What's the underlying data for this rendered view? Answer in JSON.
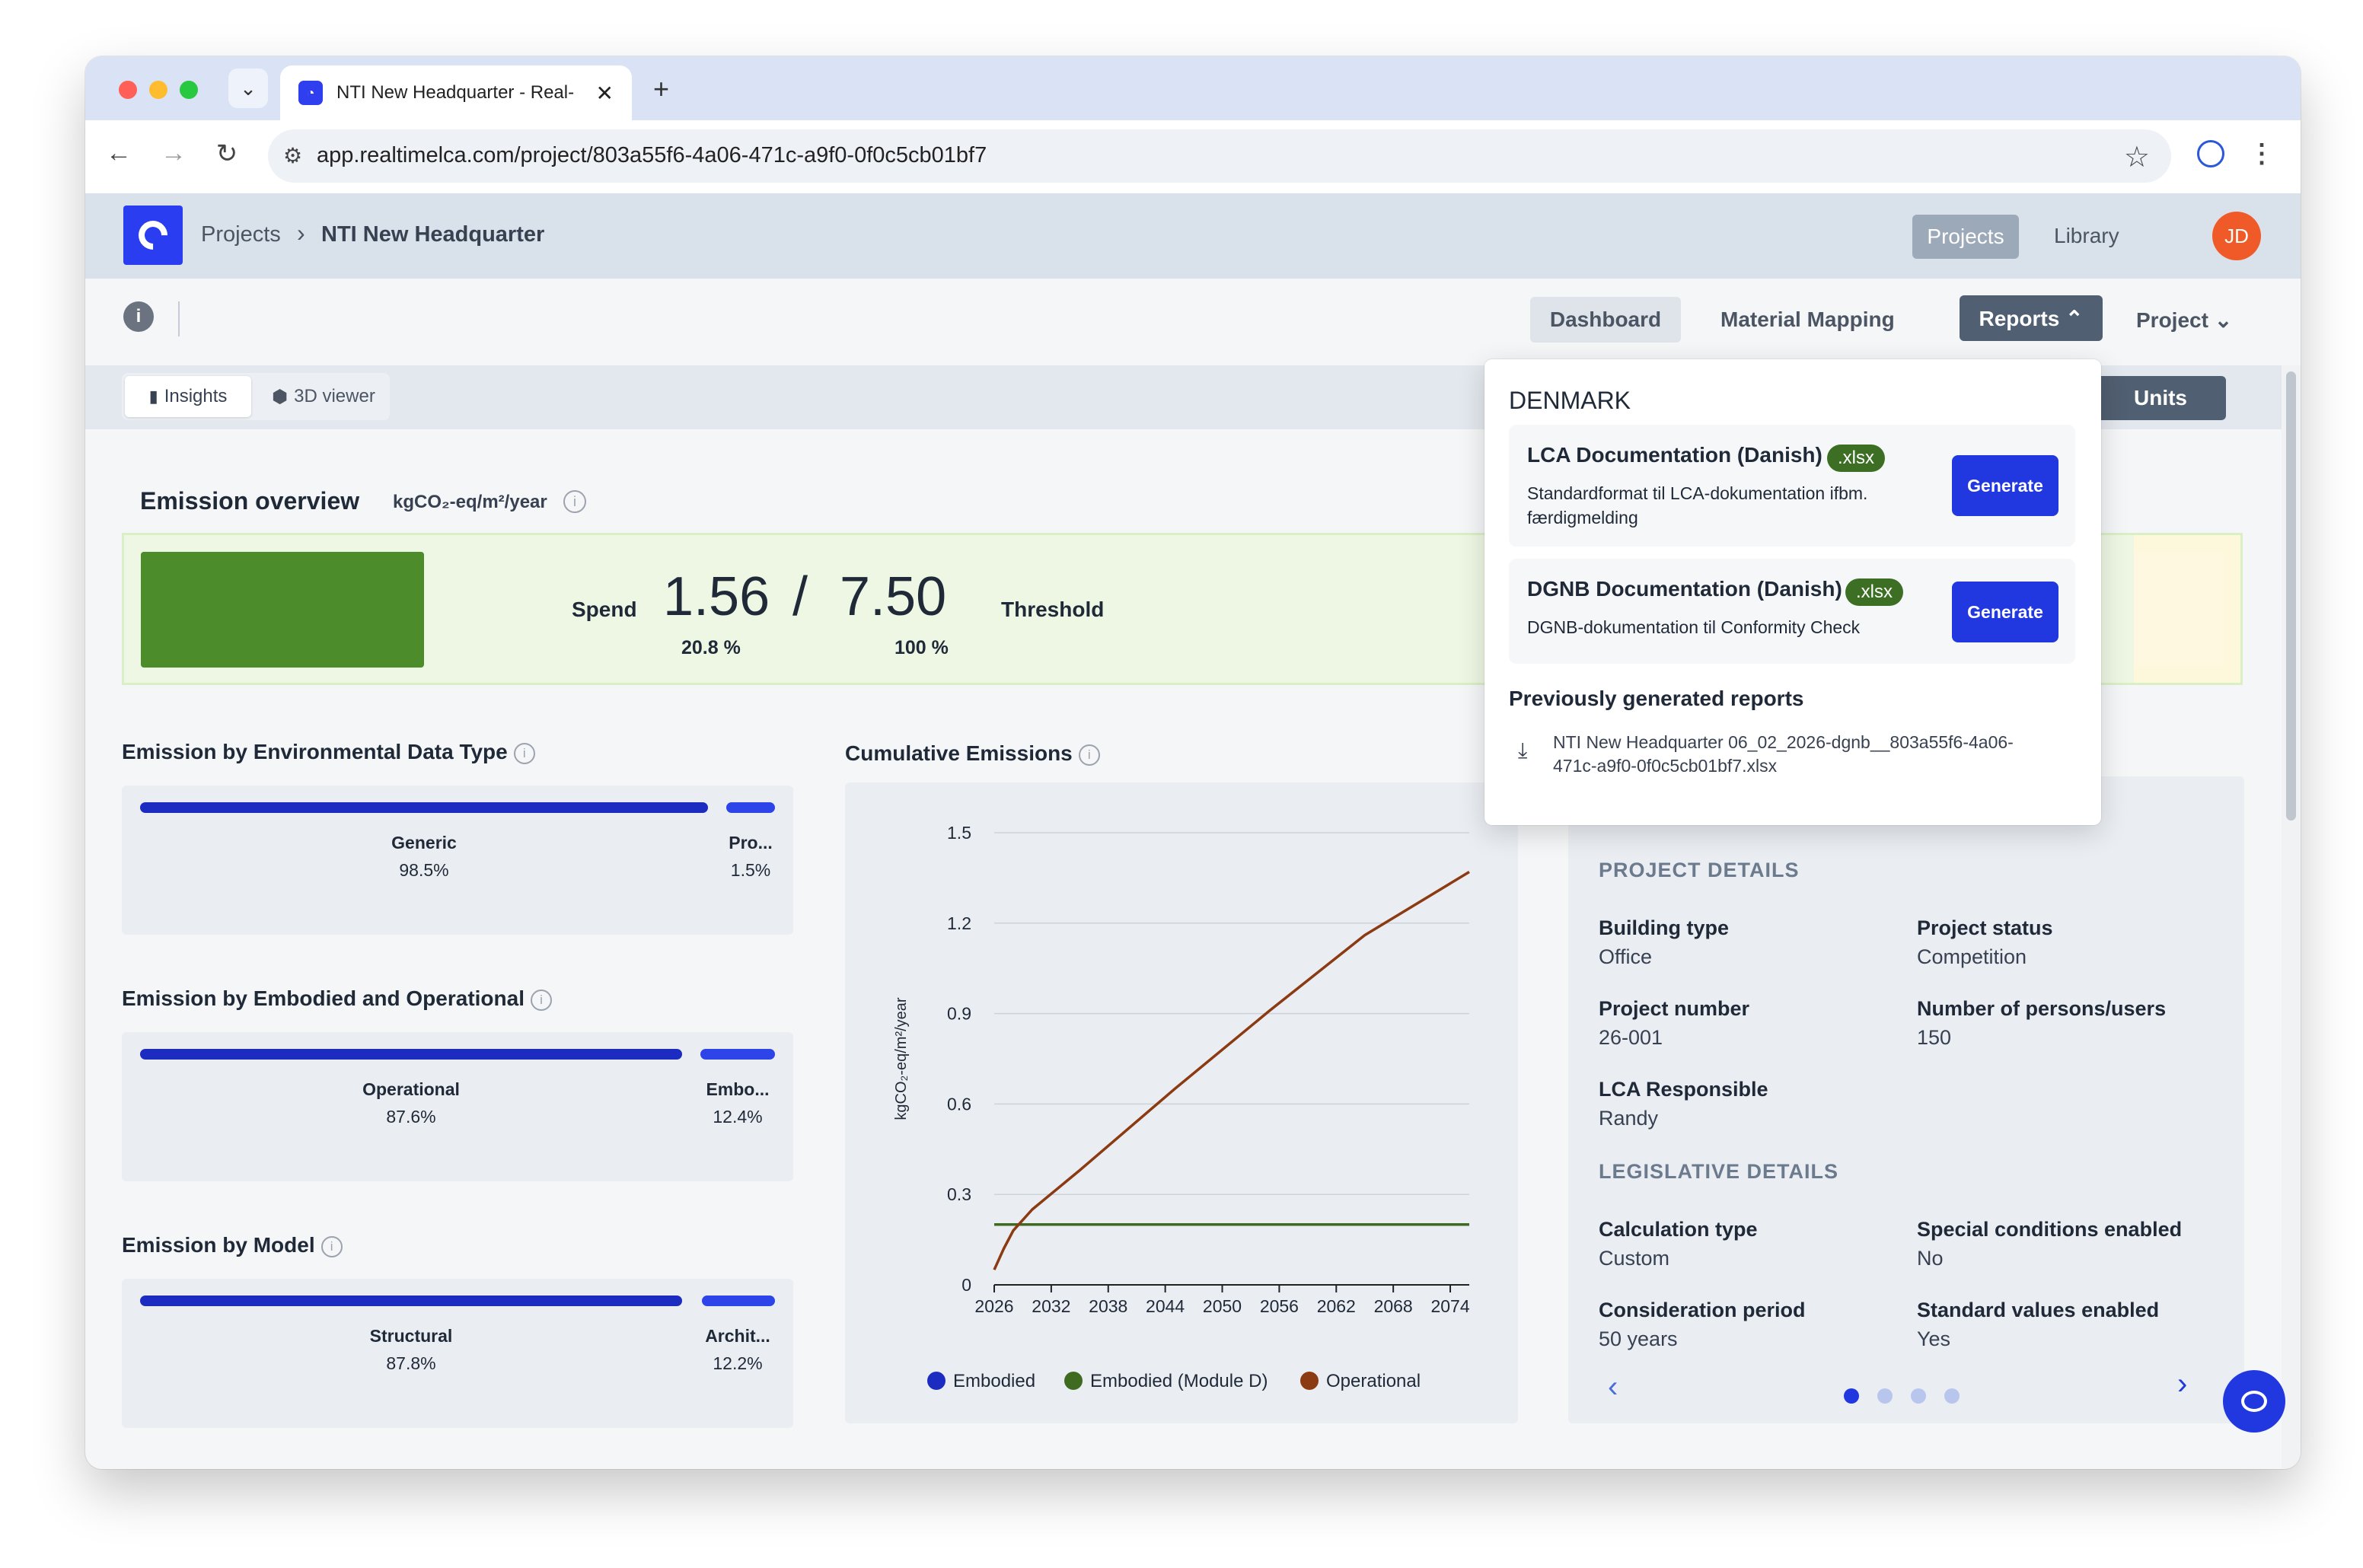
{
  "browser": {
    "tab_title": "NTI New Headquarter - Real-",
    "tab_close": "✕",
    "new_tab": "+",
    "url": "app.realtimelca.com/project/803a55f6-4a06-471c-a9f0-0f0c5cb01bf7"
  },
  "header": {
    "breadcrumb": [
      "Projects",
      "NTI New Headquarter"
    ],
    "projects_label": "Projects",
    "library_label": "Library",
    "avatar_initials": "JD"
  },
  "nav": {
    "dashboard": "Dashboard",
    "material_mapping": "Material Mapping",
    "reports": "Reports ⌃",
    "project": "Project ⌄"
  },
  "view": {
    "insights": "Insights",
    "viewer_3d": "3D viewer",
    "units": "Units"
  },
  "overview": {
    "title": "Emission overview",
    "unit": "kgCO₂-eq/m²/year",
    "spend_label": "Spend",
    "spend_value": "1.56",
    "slash": "/",
    "threshold_value": "7.50",
    "threshold_label": "Threshold",
    "spend_pct": "20.8 %",
    "threshold_pct": "100 %",
    "spend_fraction": 0.208
  },
  "env_type": {
    "title": "Emission by Environmental Data Type",
    "items": [
      {
        "label": "Generic",
        "pct": "98.5%"
      },
      {
        "label": "Pro...",
        "pct": "1.5%"
      }
    ]
  },
  "embodied_operational": {
    "title": "Emission by Embodied and Operational",
    "items": [
      {
        "label": "Operational",
        "pct": "87.6%"
      },
      {
        "label": "Embo...",
        "pct": "12.4%"
      }
    ]
  },
  "by_model": {
    "title": "Emission by Model",
    "items": [
      {
        "label": "Structural",
        "pct": "87.8%"
      },
      {
        "label": "Archit...",
        "pct": "12.2%"
      }
    ]
  },
  "chart_data": {
    "type": "line",
    "title": "Cumulative Emissions",
    "ylabel": "kgCO₂-eq/m²/year",
    "xlabel": "",
    "x_ticks": [
      "2026",
      "2032",
      "2038",
      "2044",
      "2050",
      "2056",
      "2062",
      "2068",
      "2074"
    ],
    "y_ticks": [
      "0",
      "0.3",
      "0.6",
      "0.9",
      "1.2",
      "1.5"
    ],
    "xlim": [
      2026,
      2076
    ],
    "ylim": [
      0,
      1.5
    ],
    "series": [
      {
        "name": "Embodied",
        "color": "#1c2bc0",
        "x": [],
        "y": []
      },
      {
        "name": "Embodied (Module D)",
        "color": "#3f6b21",
        "x": [
          2026,
          2076
        ],
        "y": [
          0.2,
          0.2
        ]
      },
      {
        "name": "Operational",
        "color": "#8b3a12",
        "x": [
          2026,
          2027,
          2028,
          2030,
          2035,
          2045,
          2055,
          2065,
          2076
        ],
        "y": [
          0.05,
          0.12,
          0.18,
          0.25,
          0.38,
          0.65,
          0.91,
          1.16,
          1.37
        ]
      }
    ],
    "legend_position": "bottom",
    "grid": true
  },
  "project_details": {
    "heading": "PROJECT DETAILS",
    "fields": [
      {
        "label": "Building type",
        "value": "Office"
      },
      {
        "label": "Project status",
        "value": "Competition"
      },
      {
        "label": "Project number",
        "value": "26-001"
      },
      {
        "label": "Number of persons/users",
        "value": "150"
      },
      {
        "label": "LCA Responsible",
        "value": "Randy"
      }
    ],
    "legislative_heading": "LEGISLATIVE DETAILS",
    "legislative_fields": [
      {
        "label": "Calculation type",
        "value": "Custom"
      },
      {
        "label": "Special conditions enabled",
        "value": "No"
      },
      {
        "label": "Consideration period",
        "value": "50 years"
      },
      {
        "label": "Standard values enabled",
        "value": "Yes"
      }
    ],
    "prev": "‹",
    "next": "›"
  },
  "reports_dropdown": {
    "country": "DENMARK",
    "items": [
      {
        "title": "LCA Documentation (Danish)",
        "badge": ".xlsx",
        "desc": "Standardformat til LCA-dokumentation ifbm. færdigmelding",
        "button": "Generate"
      },
      {
        "title": "DGNB Documentation (Danish)",
        "badge": ".xlsx",
        "desc": "DGNB-dokumentation til Conformity Check",
        "button": "Generate"
      }
    ],
    "previous_title": "Previously generated reports",
    "previous_file": "NTI New Headquarter 06_02_2026-dgnb__803a55f6-4a06-471c-a9f0-0f0c5cb01bf7.xlsx"
  },
  "colors": {
    "accent": "#2137e0",
    "bar_primary": "#1c2bc0",
    "spend_bar": "#4c8c2a",
    "badge": "#3c6f24"
  }
}
